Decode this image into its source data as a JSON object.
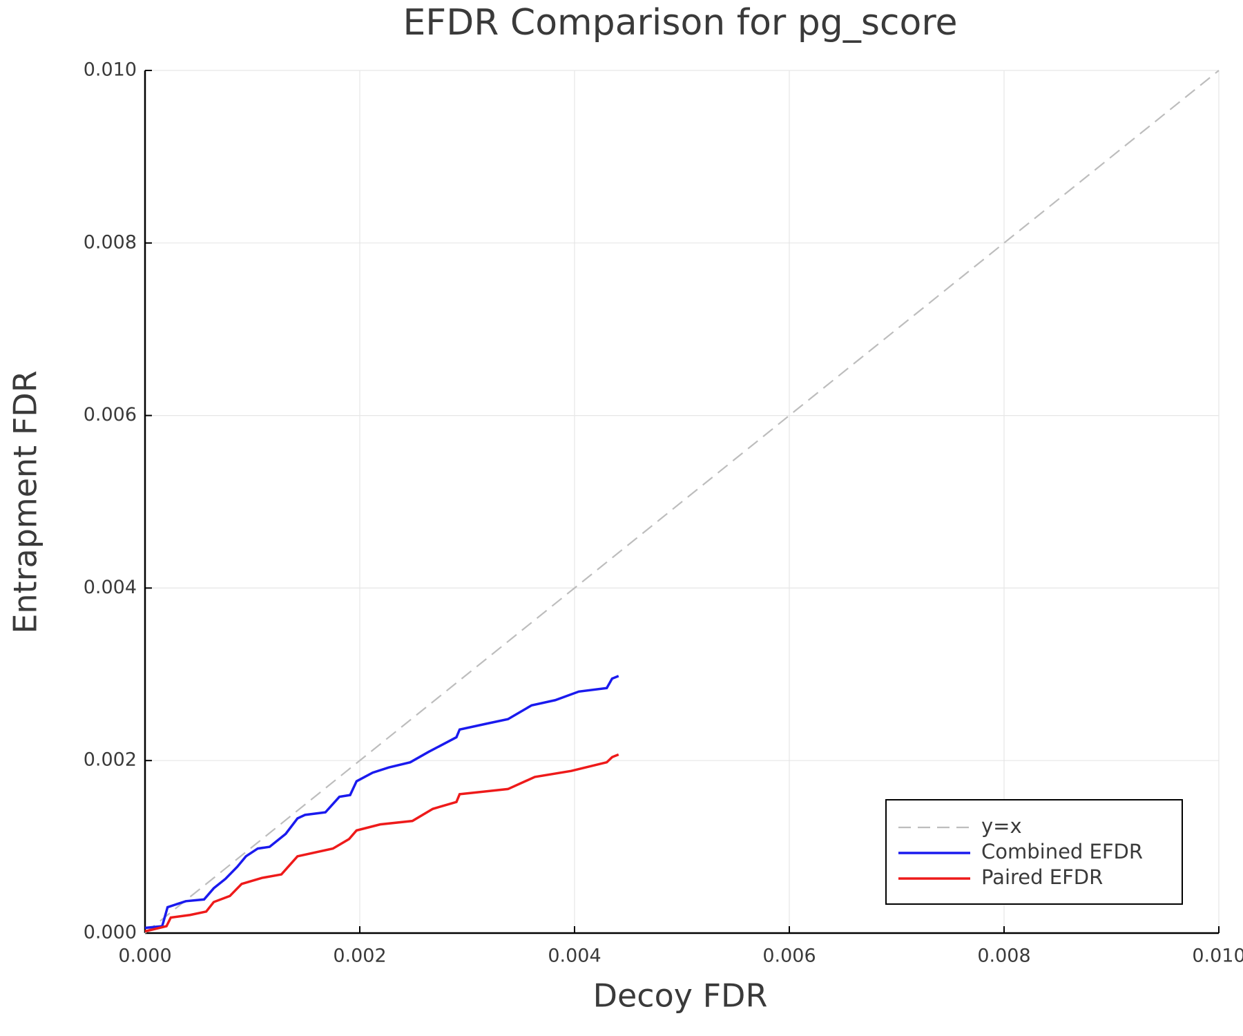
{
  "chart_data": {
    "type": "line",
    "title": "EFDR Comparison for pg_score",
    "x_label": "Decoy FDR",
    "y_label": "Entrapment FDR",
    "xlim": [
      0,
      0.01
    ],
    "ylim": [
      0,
      0.01
    ],
    "xticks": [
      {
        "value": 0,
        "label": "0.000"
      },
      {
        "value": 0.002,
        "label": "0.002"
      },
      {
        "value": 0.004,
        "label": "0.004"
      },
      {
        "value": 0.006,
        "label": "0.006"
      },
      {
        "value": 0.008,
        "label": "0.008"
      },
      {
        "value": 0.01,
        "label": "0.010"
      }
    ],
    "yticks": [
      {
        "value": 0,
        "label": "0.000"
      },
      {
        "value": 0.002,
        "label": "0.002"
      },
      {
        "value": 0.004,
        "label": "0.004"
      },
      {
        "value": 0.006,
        "label": "0.006"
      },
      {
        "value": 0.008,
        "label": "0.008"
      },
      {
        "value": 0.01,
        "label": "0.010"
      }
    ],
    "grid": true,
    "legend": "lower right",
    "series": [
      {
        "name": "y=x",
        "color": "#bdbdbd",
        "dash": true,
        "x": [
          0,
          0.01
        ],
        "values": [
          0,
          0.01
        ]
      },
      {
        "name": "Combined EFDR",
        "color": "#1a1aee",
        "dash": false,
        "x": [
          0,
          0.00016,
          0.00021,
          0.00038,
          0.00055,
          0.00064,
          0.00075,
          0.00086,
          0.00094,
          0.00105,
          0.00116,
          0.00131,
          0.00142,
          0.00149,
          0.00168,
          0.00181,
          0.00191,
          0.00197,
          0.00212,
          0.00227,
          0.00247,
          0.00264,
          0.0029,
          0.00293,
          0.00319,
          0.00338,
          0.0036,
          0.00382,
          0.00404,
          0.0043,
          0.00435,
          0.00441
        ],
        "values": [
          6e-05,
          8e-05,
          0.0003,
          0.00037,
          0.00039,
          0.00052,
          0.00063,
          0.00077,
          0.00089,
          0.00098,
          0.001,
          0.00115,
          0.00133,
          0.00137,
          0.0014,
          0.00158,
          0.0016,
          0.00176,
          0.00186,
          0.00192,
          0.00198,
          0.0021,
          0.00227,
          0.00236,
          0.00243,
          0.00248,
          0.00264,
          0.0027,
          0.0028,
          0.00284,
          0.00295,
          0.00298
        ]
      },
      {
        "name": "Paired EFDR",
        "color": "#ee1a1a",
        "dash": false,
        "x": [
          0,
          0.0002,
          0.00024,
          0.00042,
          0.00057,
          0.00064,
          0.00079,
          0.0009,
          0.00109,
          0.00127,
          0.00142,
          0.00175,
          0.0019,
          0.00197,
          0.00219,
          0.00249,
          0.00268,
          0.0029,
          0.00293,
          0.00338,
          0.00363,
          0.00397,
          0.0043,
          0.00435,
          0.00441
        ],
        "values": [
          2e-05,
          8e-05,
          0.00018,
          0.00021,
          0.00025,
          0.00036,
          0.00043,
          0.00057,
          0.00064,
          0.00068,
          0.00089,
          0.00098,
          0.00109,
          0.00119,
          0.00126,
          0.0013,
          0.00144,
          0.00152,
          0.00161,
          0.00167,
          0.00181,
          0.00188,
          0.00198,
          0.00204,
          0.00207
        ]
      }
    ]
  }
}
